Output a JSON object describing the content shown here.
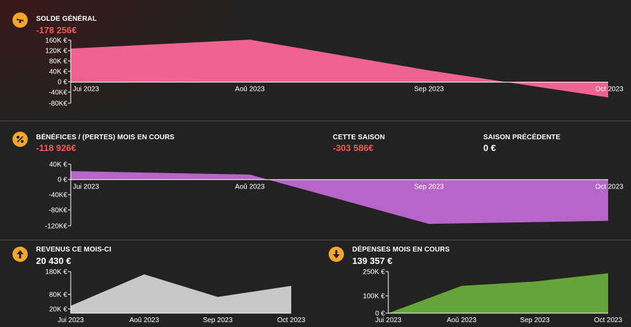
{
  "solde": {
    "title": "SOLDE GÉNÉRAL",
    "value": "-178 256€",
    "icon": "balance-scale-icon"
  },
  "benefices": {
    "title": "BÉNÉFICES / (PERTES) MOIS EN COURS",
    "value": "-118 926€",
    "icon": "percent-icon",
    "season_title": "CETTE SAISON",
    "season_value": "-303 586€",
    "prev_title": "SAISON PRÉCÉDENTE",
    "prev_value": "0 €"
  },
  "revenus": {
    "title": "REVENUS CE MOIS-CI",
    "value": "20 430 €",
    "icon": "arrow-up-icon"
  },
  "depenses": {
    "title": "DÉPENSES MOIS EN COURS",
    "value": "139 357 €",
    "icon": "arrow-down-icon"
  },
  "colors": {
    "accent": "#f6a62a",
    "negative": "#f25a5a",
    "solde_fill": "#f06292",
    "benefices_fill": "#b865c9",
    "revenus_fill": "#c8c8c8",
    "depenses_fill": "#66a33a"
  },
  "chart_data": [
    {
      "type": "area",
      "title": "SOLDE GÉNÉRAL",
      "x": [
        "Jui 2023",
        "Aoû 2023",
        "Sep 2023",
        "Oct 2023"
      ],
      "values": [
        128000,
        162000,
        45000,
        -58000
      ],
      "yticks": [
        "160K €",
        "120K €",
        "80K €",
        "40K €",
        "0 €",
        "-40K€",
        "-80K€"
      ],
      "ylim": [
        -80000,
        160000
      ]
    },
    {
      "type": "area",
      "title": "BÉNÉFICES / (PERTES) MOIS EN COURS",
      "x": [
        "Jui 2023",
        "Aoû 2023",
        "Sep 2023",
        "Oct 2023"
      ],
      "values": [
        22000,
        13000,
        -115000,
        -107000
      ],
      "yticks": [
        "40K €",
        "0 €",
        "-40K€",
        "-80K€",
        "-120K€"
      ],
      "ylim": [
        -120000,
        40000
      ]
    },
    {
      "type": "area",
      "title": "REVENUS CE MOIS-CI",
      "x": [
        "Jui 2023",
        "Aoû 2023",
        "Sep 2023",
        "Oct 2023"
      ],
      "values": [
        32000,
        168000,
        70000,
        118000
      ],
      "yticks": [
        "180K €",
        "80K €",
        "20K €"
      ],
      "ylim": [
        0,
        180000
      ]
    },
    {
      "type": "area",
      "title": "DÉPENSES MOIS EN COURS",
      "x": [
        "Jui 2023",
        "Aoû 2023",
        "Sep 2023",
        "Oct 2023"
      ],
      "values": [
        0,
        164000,
        190000,
        240000
      ],
      "yticks": [
        "250K €",
        "100K €",
        "0 €"
      ],
      "ylim": [
        0,
        250000
      ]
    }
  ]
}
